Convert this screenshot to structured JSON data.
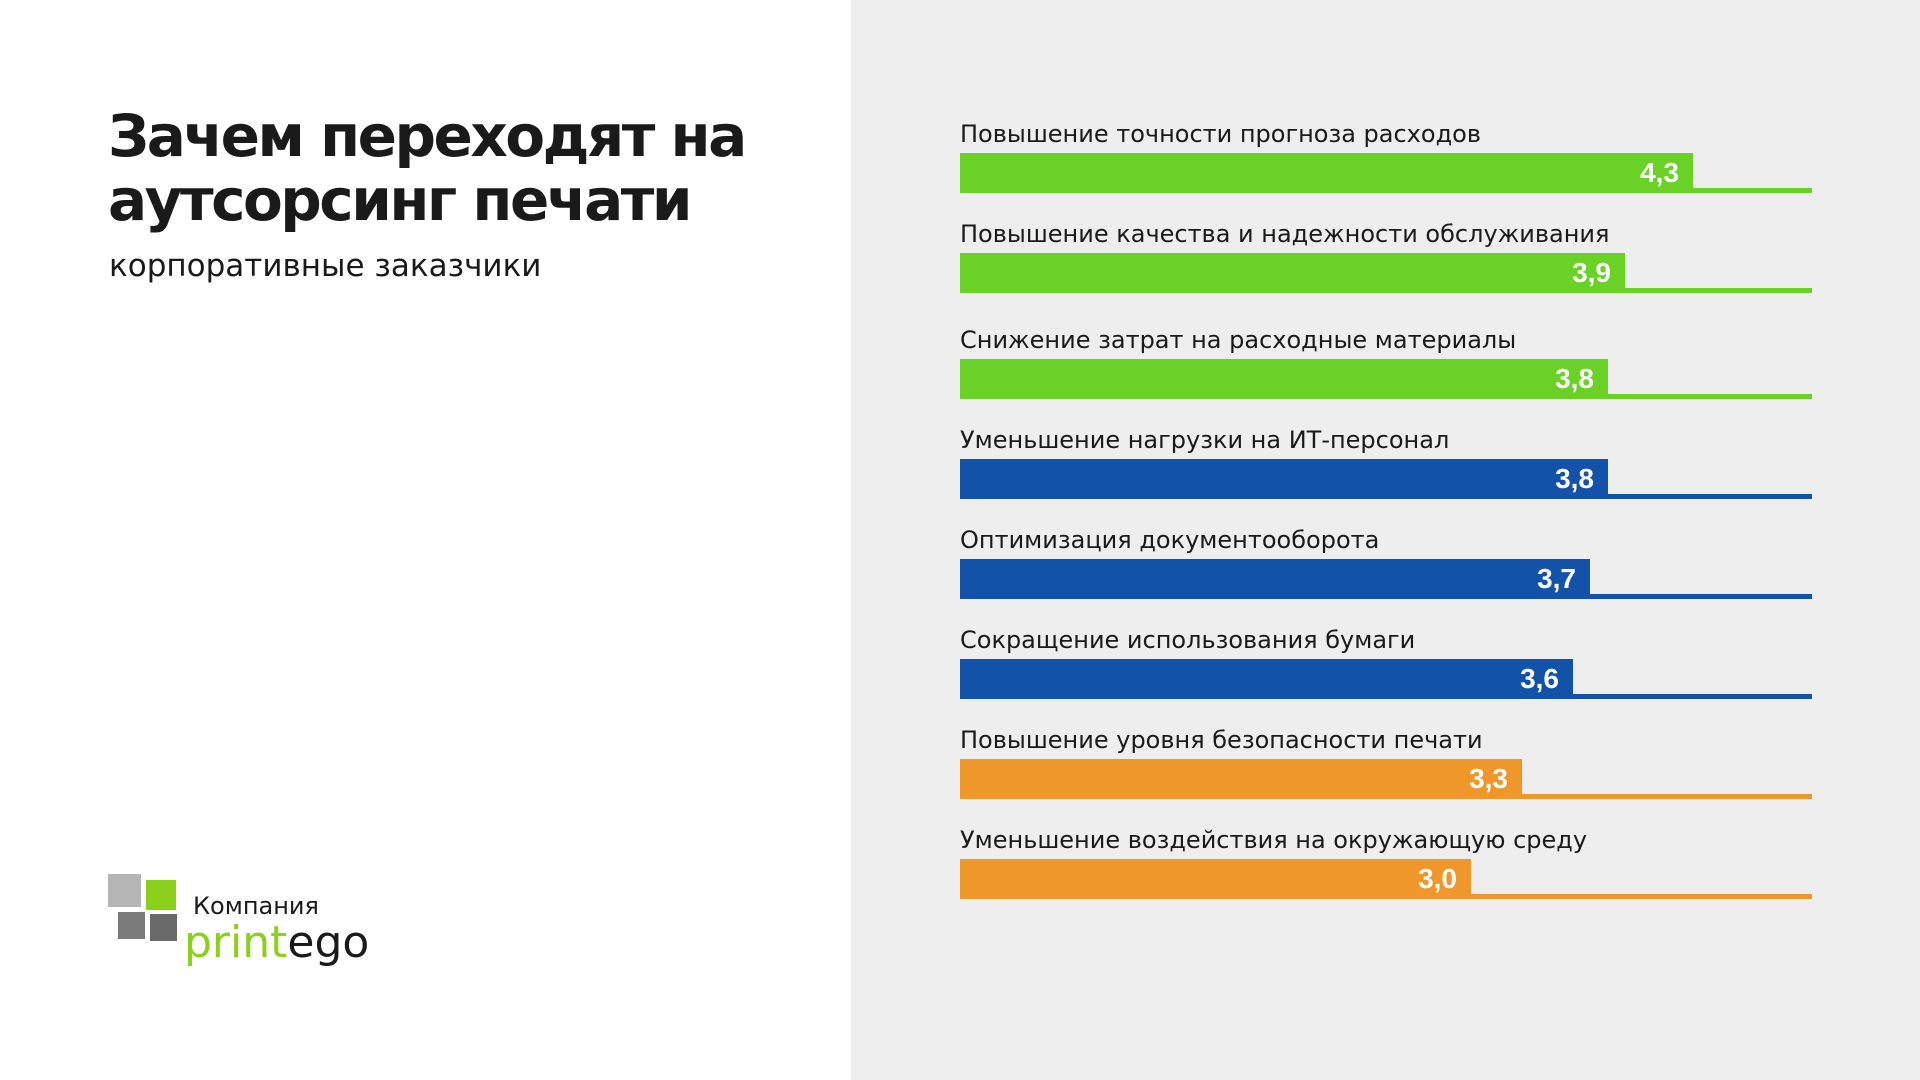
{
  "title_line1": "Зачем переходят на",
  "title_line2": "аутсорсинг печати",
  "subtitle": "корпоративные заказчики",
  "logo": {
    "company": "Компания",
    "brand_part1": "print",
    "brand_part2": "ego"
  },
  "colors": {
    "green": "#6ad126",
    "blue": "#1252a8",
    "orange": "#f0972c"
  },
  "chart_data": {
    "type": "bar",
    "orientation": "horizontal",
    "xlim": [
      0,
      5
    ],
    "categories": [
      "Повышение точности прогноза расходов",
      "Повышение качества и надежности обслуживания",
      "Снижение затрат на расходные материалы",
      "Уменьшение нагрузки на ИТ-персонал",
      "Оптимизация документооборота",
      "Сокращение использования бумаги",
      "Повышение уровня безопасности печати",
      "Уменьшение воздействия на окружающую среду"
    ],
    "values": [
      4.3,
      3.9,
      3.8,
      3.8,
      3.7,
      3.6,
      3.3,
      3.0
    ],
    "value_labels": [
      "4,3",
      "3,9",
      "3,8",
      "3,8",
      "3,7",
      "3,6",
      "3,3",
      "3,0"
    ],
    "bar_colors": [
      "green",
      "green",
      "green",
      "blue",
      "blue",
      "blue",
      "orange",
      "orange"
    ]
  }
}
